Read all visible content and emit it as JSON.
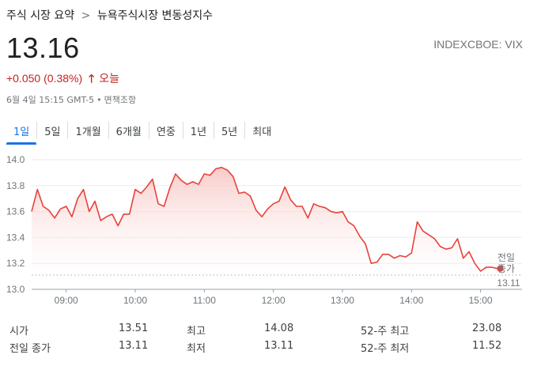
{
  "breadcrumb": {
    "parent": "주식 시장 요약",
    "separator": ">",
    "current": "뉴욕주식시장 변동성지수"
  },
  "quote": {
    "price": "13.16",
    "ticker": "INDEXCBOE: VIX",
    "change": "+0.050 (0.38%)",
    "direction_icon": "arrow-up-icon",
    "period": "오늘",
    "timestamp": "6월 4일 15:15 GMT-5",
    "disclaimer": "면책조항"
  },
  "tabs": [
    "1일",
    "5일",
    "1개월",
    "6개월",
    "연중",
    "1년",
    "5년",
    "최대"
  ],
  "active_tab": "1일",
  "colors": {
    "line": "#e8413a",
    "fill_top": "#f7c6c3",
    "accent": "#1a73e8",
    "down_text": "#c5221f"
  },
  "chart_data": {
    "type": "area",
    "x": [
      "08:30",
      "08:35",
      "08:40",
      "08:45",
      "08:50",
      "08:55",
      "09:00",
      "09:05",
      "09:10",
      "09:15",
      "09:20",
      "09:25",
      "09:30",
      "09:35",
      "09:40",
      "09:45",
      "09:50",
      "09:55",
      "10:00",
      "10:05",
      "10:10",
      "10:15",
      "10:20",
      "10:25",
      "10:30",
      "10:35",
      "10:40",
      "10:45",
      "10:50",
      "10:55",
      "11:00",
      "11:05",
      "11:10",
      "11:15",
      "11:20",
      "11:25",
      "11:30",
      "11:35",
      "11:40",
      "11:45",
      "11:50",
      "11:55",
      "12:00",
      "12:05",
      "12:10",
      "12:15",
      "12:20",
      "12:25",
      "12:30",
      "12:35",
      "12:40",
      "12:45",
      "12:50",
      "12:55",
      "13:00",
      "13:05",
      "13:10",
      "13:15",
      "13:20",
      "13:25",
      "13:30",
      "13:35",
      "13:40",
      "13:45",
      "13:50",
      "13:55",
      "14:00",
      "14:05",
      "14:10",
      "14:15",
      "14:20",
      "14:25",
      "14:30",
      "14:35",
      "14:40",
      "14:45",
      "14:50",
      "14:55",
      "15:00",
      "15:05",
      "15:10",
      "15:15"
    ],
    "y": [
      13.6,
      13.77,
      13.64,
      13.61,
      13.55,
      13.62,
      13.64,
      13.56,
      13.7,
      13.77,
      13.6,
      13.68,
      13.53,
      13.56,
      13.58,
      13.49,
      13.58,
      13.58,
      13.77,
      13.74,
      13.79,
      13.85,
      13.66,
      13.64,
      13.78,
      13.89,
      13.84,
      13.81,
      13.83,
      13.81,
      13.89,
      13.88,
      13.93,
      13.94,
      13.92,
      13.87,
      13.74,
      13.75,
      13.72,
      13.61,
      13.56,
      13.62,
      13.66,
      13.68,
      13.79,
      13.69,
      13.64,
      13.64,
      13.55,
      13.66,
      13.64,
      13.63,
      13.6,
      13.59,
      13.6,
      13.52,
      13.49,
      13.41,
      13.35,
      13.2,
      13.21,
      13.27,
      13.27,
      13.24,
      13.26,
      13.25,
      13.28,
      13.52,
      13.45,
      13.42,
      13.39,
      13.33,
      13.31,
      13.32,
      13.39,
      13.24,
      13.29,
      13.2,
      13.14,
      13.17,
      13.17,
      13.16
    ],
    "x_ticks": [
      "09:00",
      "10:00",
      "11:00",
      "12:00",
      "13:00",
      "14:00",
      "15:00"
    ],
    "y_ticks": [
      "13.0",
      "13.2",
      "13.4",
      "13.6",
      "13.8",
      "14.0"
    ],
    "ylim": [
      13.0,
      14.0
    ],
    "prev_close": {
      "label_line1": "전일",
      "label_line2": "종가",
      "value": "13.11",
      "y": 13.11
    },
    "last_point": 13.16,
    "grid": true
  },
  "stats": [
    {
      "k1": "시가",
      "v1": "13.51",
      "k2": "최고",
      "v2": "14.08",
      "k3": "52-주 최고",
      "v3": "23.08"
    },
    {
      "k1": "전일 종가",
      "v1": "13.11",
      "k2": "최저",
      "v2": "13.11",
      "k3": "52-주 최저",
      "v3": "11.52"
    }
  ]
}
